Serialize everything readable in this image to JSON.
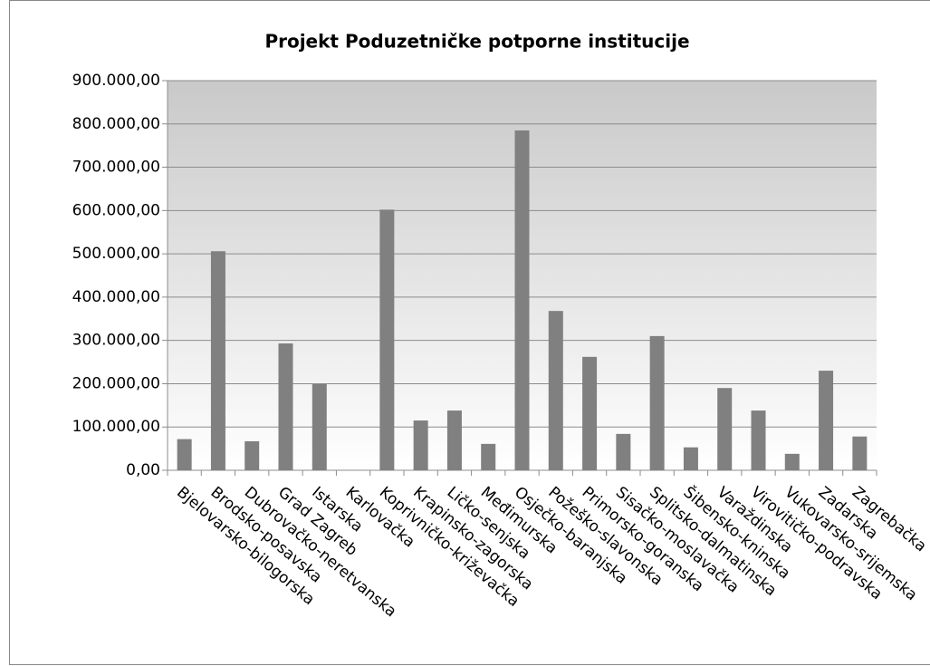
{
  "chart_data": {
    "type": "bar",
    "title": "Projekt Poduzetničke potporne institucije",
    "categories": [
      "Bjelovarsko-bilogorska",
      "Brodsko-posavska",
      "Dubrovačko-neretvanska",
      "Grad Zagreb",
      "Istarska",
      "Karlovačka",
      "Koprivničko-križevačka",
      "Krapinsko-zagorska",
      "Ličko-senjska",
      "Međimurska",
      "Osječko-baranjska",
      "Požeško-slavonska",
      "Primorsko-goranska",
      "Sisačko-moslavačka",
      "Splitsko-dalmatinska",
      "Šibensko-kninska",
      "Varaždinska",
      "Virovitičko-podravska",
      "Vukovarsko-srijemska",
      "Zadarska",
      "Zagrebačka"
    ],
    "values": [
      72000,
      506000,
      67000,
      293000,
      199000,
      0,
      602000,
      115000,
      138000,
      61000,
      785000,
      368000,
      262000,
      84000,
      310000,
      53000,
      190000,
      138000,
      38000,
      230000,
      78000
    ],
    "color": "#808080",
    "ylim": [
      0,
      900000
    ],
    "yticks": [
      {
        "value": 0,
        "label": "0,00"
      },
      {
        "value": 100000,
        "label": "100.000,00"
      },
      {
        "value": 200000,
        "label": "200.000,00"
      },
      {
        "value": 300000,
        "label": "300.000,00"
      },
      {
        "value": 400000,
        "label": "400.000,00"
      },
      {
        "value": 500000,
        "label": "500.000,00"
      },
      {
        "value": 600000,
        "label": "600.000,00"
      },
      {
        "value": 700000,
        "label": "700.000,00"
      },
      {
        "value": 800000,
        "label": "800.000,00"
      },
      {
        "value": 900000,
        "label": "900.000,00"
      }
    ],
    "grid": true
  }
}
